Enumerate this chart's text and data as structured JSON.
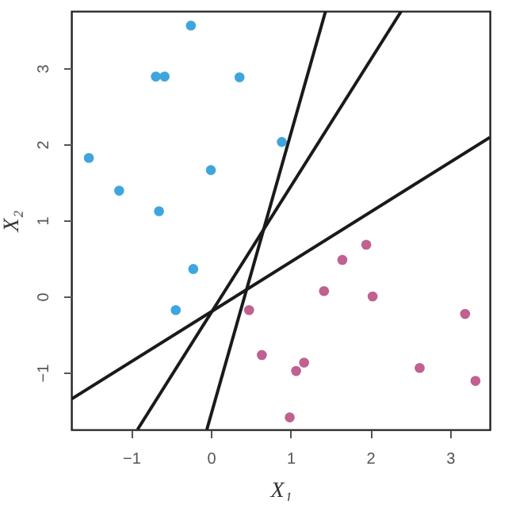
{
  "chart_data": {
    "type": "scatter",
    "xlabel": "X₁",
    "ylabel": "X₂",
    "xlim": [
      -1.75,
      3.5
    ],
    "ylim": [
      -1.75,
      3.75
    ],
    "xticks": [
      -1,
      0,
      1,
      2,
      3
    ],
    "yticks": [
      -1,
      0,
      1,
      2,
      3
    ],
    "grid": false,
    "marker": "circle",
    "series": [
      {
        "color": "#3ea6dc",
        "x": [
          -0.25,
          -0.69,
          -0.58,
          0.36,
          0.89,
          -1.53,
          0.0,
          -1.15,
          -0.65,
          -0.22,
          -0.44
        ],
        "values": [
          3.56,
          2.89,
          2.89,
          2.88,
          2.03,
          1.82,
          1.66,
          1.39,
          1.12,
          0.36,
          -0.18
        ]
      },
      {
        "color": "#c0618f",
        "x": [
          1.65,
          1.95,
          1.42,
          2.03,
          0.48,
          3.19,
          0.64,
          1.17,
          1.07,
          2.62,
          3.32,
          0.99
        ],
        "values": [
          0.48,
          0.68,
          0.07,
          0.0,
          -0.18,
          -0.23,
          -0.77,
          -0.87,
          -0.98,
          -0.94,
          -1.11,
          -1.59
        ]
      },
      {
        "type": "line",
        "color": "#1a1a1a",
        "marker": "none",
        "line_style": "solid",
        "x": [
          -0.05,
          1.44
        ],
        "values": [
          -1.75,
          3.75
        ]
      },
      {
        "type": "line",
        "color": "#1a1a1a",
        "marker": "none",
        "line_style": "solid",
        "x": [
          -0.92,
          2.39
        ],
        "values": [
          -1.75,
          3.75
        ]
      },
      {
        "type": "line",
        "color": "#1a1a1a",
        "marker": "none",
        "line_style": "solid",
        "x": [
          -1.75,
          3.5
        ],
        "values": [
          -1.35,
          2.09
        ]
      }
    ]
  }
}
